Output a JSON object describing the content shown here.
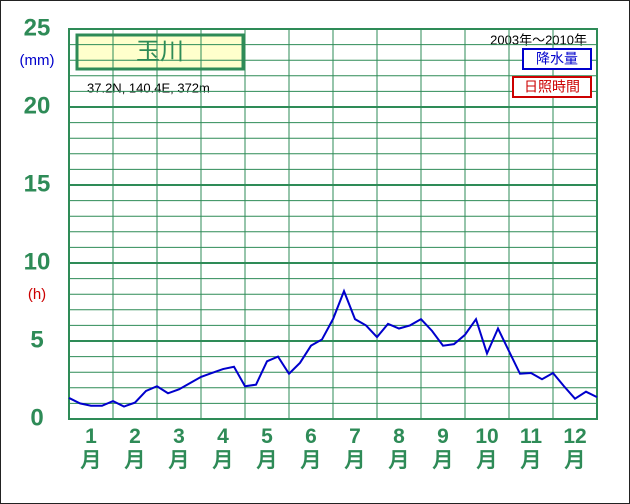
{
  "chart_data": {
    "type": "line",
    "station": "玉川",
    "location": "37.2N,  140.4E,  372m",
    "period": "2003年～2010年",
    "y_unit": "(mm)",
    "y2_unit": "(h)",
    "legend": [
      "降水量",
      "日照時間"
    ],
    "categories": [
      "1月",
      "2月",
      "3月",
      "4月",
      "5月",
      "6月",
      "7月",
      "8月",
      "9月",
      "10月",
      "11月",
      "12月"
    ],
    "xlim": [
      0,
      12
    ],
    "ylim": [
      0,
      25
    ],
    "yticks": [
      0,
      5,
      10,
      15,
      20,
      25
    ],
    "grid": true,
    "x": [
      0,
      0.25,
      0.5,
      0.75,
      1,
      1.25,
      1.5,
      1.75,
      2,
      2.25,
      2.5,
      2.75,
      3,
      3.25,
      3.5,
      3.75,
      4,
      4.25,
      4.5,
      4.75,
      5,
      5.25,
      5.5,
      5.75,
      6,
      6.25,
      6.5,
      6.75,
      7,
      7.25,
      7.5,
      7.75,
      8,
      8.25,
      8.5,
      8.75,
      9,
      9.25,
      9.5,
      9.75,
      10,
      10.25,
      10.5,
      10.75,
      11,
      11.25,
      11.5,
      11.75,
      12
    ],
    "series": [
      {
        "name": "降水量",
        "color": "#0000cc",
        "values": [
          1.35,
          1.0,
          0.85,
          0.85,
          1.15,
          0.8,
          1.05,
          1.8,
          2.1,
          1.65,
          1.9,
          2.3,
          2.7,
          2.95,
          3.2,
          3.35,
          2.1,
          2.2,
          3.7,
          4.0,
          2.9,
          3.6,
          4.7,
          5.1,
          6.4,
          8.2,
          6.4,
          6.0,
          5.25,
          6.1,
          5.8,
          6.0,
          6.4,
          5.65,
          4.7,
          4.8,
          5.4,
          6.4,
          4.2,
          5.8,
          4.35,
          2.9,
          2.95,
          2.55,
          2.95,
          2.1,
          1.3,
          1.75,
          1.4
        ]
      }
    ],
    "legend_colors": [
      "#0000cc",
      "#cc0000"
    ]
  }
}
